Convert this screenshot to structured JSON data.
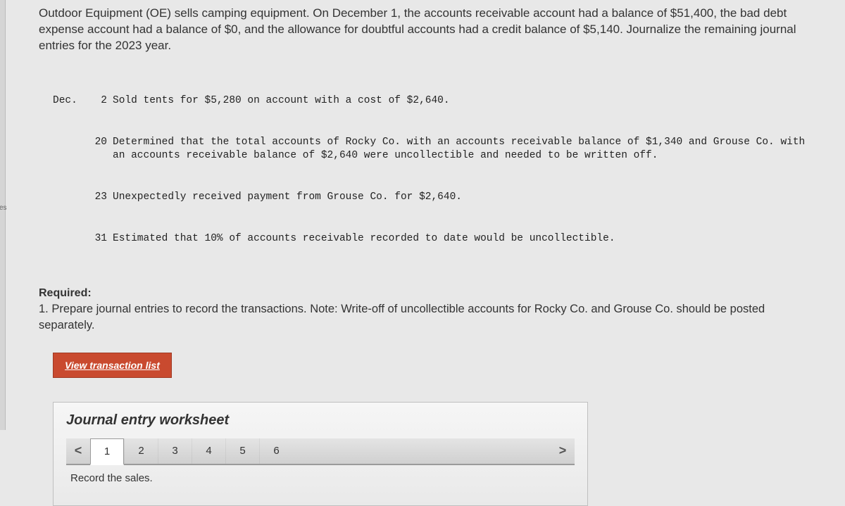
{
  "sidebar_label": "es",
  "problem": {
    "intro": "Outdoor Equipment (OE) sells camping equipment. On December 1, the accounts receivable account had a balance of $51,400, the bad debt expense account had a balance of $0, and the allowance for doubtful accounts had a credit balance of $5,140. Journalize the remaining journal entries for the 2023 year."
  },
  "transactions": {
    "month": "Dec.",
    "items": [
      {
        "day": "2",
        "desc": "Sold tents for $5,280 on account with a cost of $2,640."
      },
      {
        "day": "20",
        "desc": "Determined that the total accounts of Rocky Co. with an accounts receivable balance of $1,340 and Grouse Co. with an accounts receivable balance of $2,640 were uncollectible and needed to be written off."
      },
      {
        "day": "23",
        "desc": "Unexpectedly received payment from Grouse Co. for $2,640."
      },
      {
        "day": "31",
        "desc": "Estimated that 10% of accounts receivable recorded to date would be uncollectible."
      }
    ]
  },
  "required": {
    "heading": "Required:",
    "text": "1. Prepare journal entries to record the transactions. Note: Write-off of uncollectible accounts for Rocky Co. and Grouse Co. should be posted separately."
  },
  "view_btn": "View transaction list",
  "worksheet": {
    "title": "Journal entry worksheet",
    "prev": "<",
    "next": ">",
    "tabs": [
      "1",
      "2",
      "3",
      "4",
      "5",
      "6"
    ],
    "active_tab": 0,
    "record_label": "Record the sales."
  }
}
